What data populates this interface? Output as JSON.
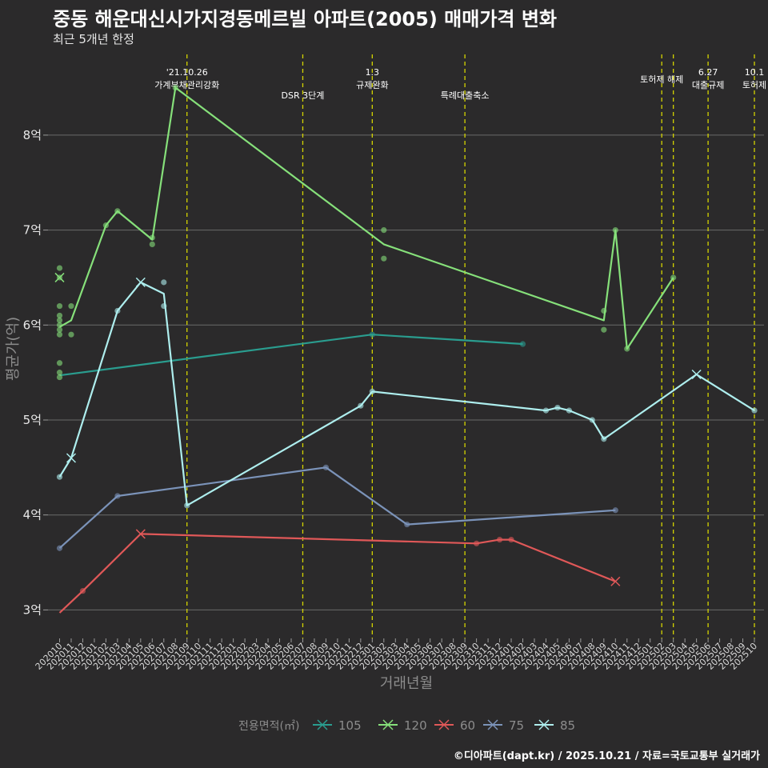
{
  "title": "중동 해운대신시가지경동메르빌 아파트(2005) 매매가격 변화",
  "subtitle": "최근 5개년 한정",
  "caption": "©디아파트(dapt.kr) / 2025.10.21 / 자료=국토교통부 실거래가",
  "chart_data": {
    "type": "line",
    "xlabel": "거래년월",
    "ylabel": "평균가(억)",
    "ylim": [
      2.7,
      8.85
    ],
    "x_start": "2020-10",
    "x_end": "2025-10",
    "yticks": [
      3,
      4,
      5,
      6,
      7,
      8
    ],
    "ytick_labels": [
      "3억",
      "4억",
      "5억",
      "6억",
      "7억",
      "8억"
    ],
    "xtick_labels": [
      "202010",
      "202011",
      "202012",
      "202101",
      "202102",
      "202103",
      "202104",
      "202105",
      "202106",
      "202107",
      "202108",
      "202109",
      "202110",
      "202111",
      "202112",
      "202201",
      "202202",
      "202203",
      "202204",
      "202205",
      "202206",
      "202207",
      "202208",
      "202209",
      "202210",
      "202211",
      "202212",
      "202301",
      "202302",
      "202303",
      "202304",
      "202305",
      "202306",
      "202307",
      "202308",
      "202309",
      "202310",
      "202311",
      "202312",
      "202401",
      "202402",
      "202403",
      "202404",
      "202405",
      "202406",
      "202407",
      "202408",
      "202409",
      "202410",
      "202411",
      "202412",
      "202501",
      "202502",
      "202503",
      "202504",
      "202505",
      "202506",
      "202507",
      "202508",
      "202509",
      "202510"
    ],
    "legend_title": "전용면적(㎡)",
    "legend_order": [
      "105",
      "120",
      "60",
      "75",
      "85"
    ],
    "colors": {
      "105": "#2a9d8f",
      "120": "#86e07a",
      "60": "#e05858",
      "75": "#7b93b9",
      "85": "#aeeeee"
    },
    "events": [
      {
        "month": "2021-09",
        "label": "'21.10.26\n가계부채관리강화"
      },
      {
        "month": "2022-07",
        "label": "DSR 3단계"
      },
      {
        "month": "2023-01",
        "label": "1.3\n규제완화"
      },
      {
        "month": "2023-09",
        "label": "특례대출축소"
      },
      {
        "month": "2025-02",
        "label": "토허제 해제"
      },
      {
        "month": "2025-03",
        "label": ""
      },
      {
        "month": "2025-06",
        "label": "6.27\n대출규제"
      },
      {
        "month": "2025-10",
        "label": "10.1\n토허제"
      }
    ],
    "series": [
      {
        "name": "105",
        "line": [
          [
            "2020-10",
            5.47
          ],
          [
            "2023-01",
            5.9
          ],
          [
            "2024-02",
            5.8
          ]
        ],
        "points": [
          [
            "2023-01",
            5.9
          ],
          [
            "2024-02",
            5.8
          ]
        ],
        "crosses": []
      },
      {
        "name": "120",
        "line": [
          [
            "2020-10",
            5.98
          ],
          [
            "2020-11",
            6.05
          ],
          [
            "2021-02",
            7.05
          ],
          [
            "2021-03",
            7.2
          ],
          [
            "2021-06",
            6.9
          ],
          [
            "2021-08",
            8.5
          ],
          [
            "2023-02",
            6.85
          ],
          [
            "2024-09",
            6.05
          ],
          [
            "2024-10",
            7.0
          ],
          [
            "2024-11",
            5.75
          ],
          [
            "2025-03",
            6.5
          ]
        ],
        "points": [
          [
            "2020-10",
            6.6
          ],
          [
            "2020-10",
            6.5
          ],
          [
            "2020-10",
            6.2
          ],
          [
            "2020-10",
            6.1
          ],
          [
            "2020-10",
            6.05
          ],
          [
            "2020-10",
            6.0
          ],
          [
            "2020-10",
            5.95
          ],
          [
            "2020-10",
            5.9
          ],
          [
            "2020-10",
            5.6
          ],
          [
            "2020-10",
            5.5
          ],
          [
            "2020-10",
            5.45
          ],
          [
            "2020-11",
            6.2
          ],
          [
            "2020-11",
            5.9
          ],
          [
            "2021-02",
            7.05
          ],
          [
            "2021-03",
            7.2
          ],
          [
            "2021-06",
            6.92
          ],
          [
            "2021-06",
            6.85
          ],
          [
            "2021-08",
            8.5
          ],
          [
            "2023-02",
            7.0
          ],
          [
            "2023-02",
            6.7
          ],
          [
            "2024-09",
            6.15
          ],
          [
            "2024-09",
            5.95
          ],
          [
            "2024-10",
            7.0
          ],
          [
            "2024-11",
            5.75
          ],
          [
            "2025-03",
            6.5
          ]
        ],
        "crosses": [
          [
            "2020-10",
            6.5
          ]
        ]
      },
      {
        "name": "60",
        "line": [
          [
            "2020-10",
            2.97
          ],
          [
            "2020-12",
            3.2
          ],
          [
            "2021-05",
            3.8
          ],
          [
            "2023-10",
            3.7
          ],
          [
            "2023-12",
            3.74
          ],
          [
            "2024-01",
            3.74
          ],
          [
            "2024-10",
            3.3
          ]
        ],
        "points": [
          [
            "2020-12",
            3.2
          ],
          [
            "2023-10",
            3.7
          ],
          [
            "2023-12",
            3.74
          ],
          [
            "2024-01",
            3.74
          ]
        ],
        "crosses": [
          [
            "2021-05",
            3.8
          ],
          [
            "2024-10",
            3.3
          ]
        ]
      },
      {
        "name": "75",
        "line": [
          [
            "2020-10",
            3.65
          ],
          [
            "2021-03",
            4.2
          ],
          [
            "2022-09",
            4.5
          ],
          [
            "2023-04",
            3.9
          ],
          [
            "2024-10",
            4.05
          ]
        ],
        "points": [
          [
            "2020-10",
            3.65
          ],
          [
            "2021-03",
            4.2
          ],
          [
            "2022-09",
            4.5
          ],
          [
            "2023-04",
            3.9
          ],
          [
            "2024-10",
            4.05
          ]
        ],
        "crosses": []
      },
      {
        "name": "85",
        "line": [
          [
            "2020-10",
            4.4
          ],
          [
            "2020-11",
            4.6
          ],
          [
            "2021-03",
            6.15
          ],
          [
            "2021-05",
            6.45
          ],
          [
            "2021-07",
            6.33
          ],
          [
            "2021-09",
            4.1
          ],
          [
            "2022-12",
            5.15
          ],
          [
            "2023-01",
            5.3
          ],
          [
            "2024-04",
            5.1
          ],
          [
            "2024-05",
            5.13
          ],
          [
            "2024-06",
            5.1
          ],
          [
            "2024-08",
            5.0
          ],
          [
            "2024-09",
            4.8
          ],
          [
            "2025-05",
            5.48
          ],
          [
            "2025-10",
            5.1
          ]
        ],
        "points": [
          [
            "2020-10",
            4.4
          ],
          [
            "2021-03",
            6.15
          ],
          [
            "2021-07",
            6.45
          ],
          [
            "2021-07",
            6.2
          ],
          [
            "2021-09",
            4.1
          ],
          [
            "2022-12",
            5.15
          ],
          [
            "2023-01",
            5.3
          ],
          [
            "2024-04",
            5.1
          ],
          [
            "2024-05",
            5.13
          ],
          [
            "2024-06",
            5.1
          ],
          [
            "2024-08",
            5.0
          ],
          [
            "2024-09",
            4.8
          ],
          [
            "2025-10",
            5.1
          ]
        ],
        "crosses": [
          [
            "2020-11",
            4.6
          ],
          [
            "2021-05",
            6.45
          ],
          [
            "2025-05",
            5.48
          ]
        ]
      }
    ]
  }
}
